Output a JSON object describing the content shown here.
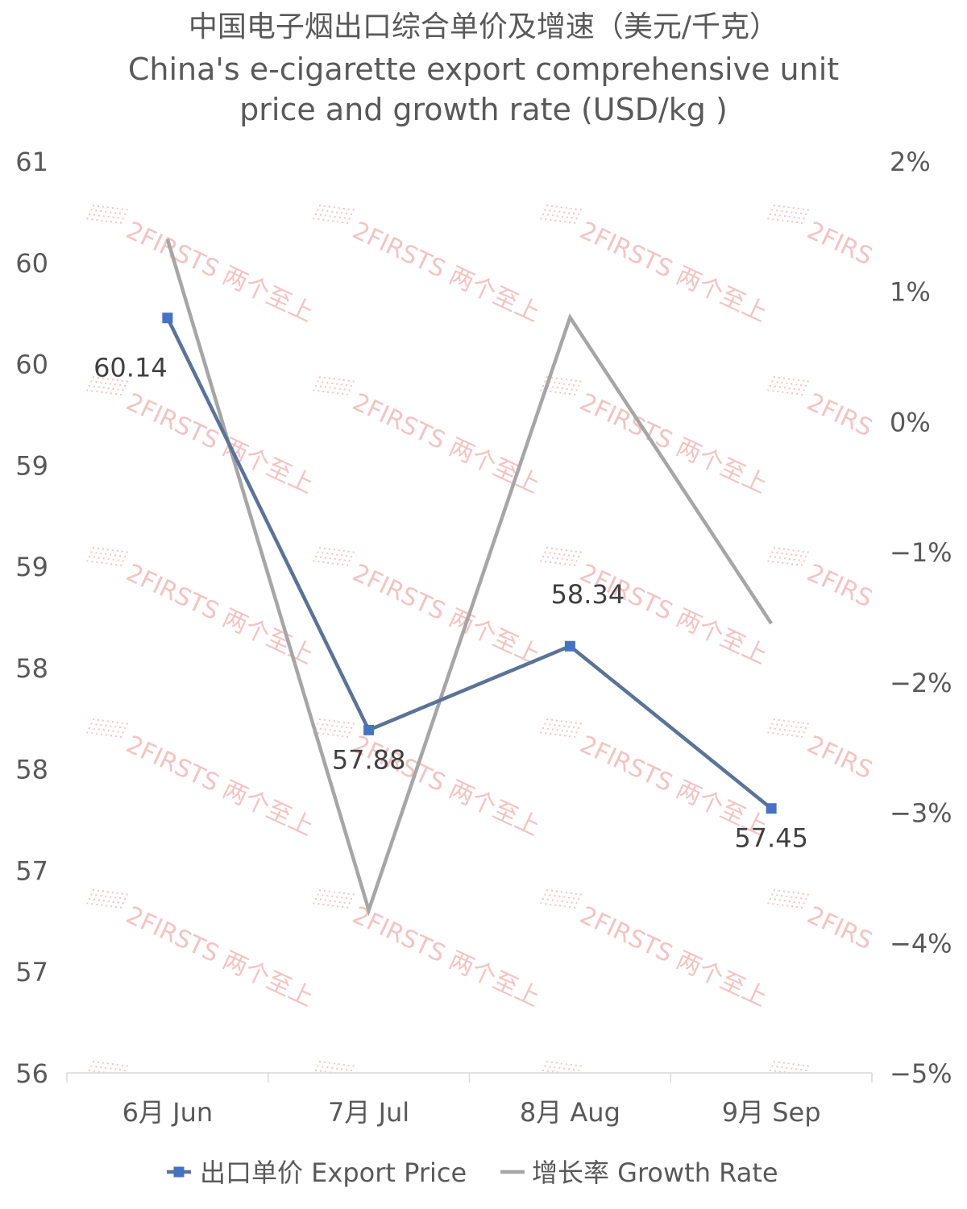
{
  "title": {
    "zh": "中国电子烟出口综合单价及增速（美元/千克）",
    "en_line1": "China's e-cigarette export comprehensive unit",
    "en_line2": "price and growth rate (USD/kg )"
  },
  "watermark": "2FIRSTS 两个至上",
  "colors": {
    "price": "#5a7396",
    "price_marker": "#4472c4",
    "growth": "#a6a6a6",
    "text": "#595959",
    "watermark": "#f2c4c4"
  },
  "chart_data": {
    "type": "line",
    "categories": [
      "6月 Jun",
      "7月 Jul",
      "8月 Aug",
      "9月 Sep"
    ],
    "series": [
      {
        "name": "出口单价 Export Price",
        "axis": "left",
        "values": [
          60.14,
          57.88,
          58.34,
          57.45
        ],
        "labels": [
          "60.14",
          "57.88",
          "58.34",
          "57.45"
        ],
        "marker": "square"
      },
      {
        "name": "增长率 Growth Rate",
        "axis": "right",
        "values": [
          1.4,
          -3.75,
          0.8,
          -1.55
        ],
        "marker": "none"
      }
    ],
    "y_left": {
      "min": 56,
      "max": 61,
      "ticks": [
        "61",
        "60",
        "60",
        "59",
        "59",
        "58",
        "58",
        "57",
        "57",
        "56"
      ]
    },
    "y_right": {
      "min": -5,
      "max": 2,
      "ticks": [
        "2%",
        "1%",
        "0%",
        "−1%",
        "−2%",
        "−3%",
        "−4%",
        "−5%"
      ]
    },
    "legend_position": "bottom",
    "grid": false
  }
}
